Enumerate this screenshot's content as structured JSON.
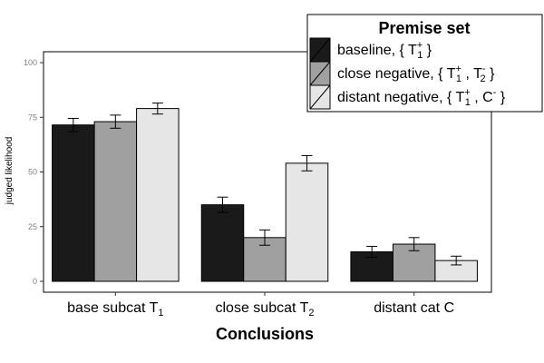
{
  "chart_data": {
    "type": "bar",
    "xlabel": "Conclusions",
    "ylabel": "judged likelihood",
    "ylim": [
      0,
      100
    ],
    "yticks": [
      0,
      25,
      50,
      75,
      100
    ],
    "grid": false,
    "legend_position": "top-right",
    "legend_title": "Premise set",
    "categories": [
      {
        "text": "base subcat",
        "symbol": "T",
        "sub": "1"
      },
      {
        "text": "close subcat",
        "symbol": "T",
        "sub": "2"
      },
      {
        "text": "distant cat",
        "symbol": "C",
        "sub": ""
      }
    ],
    "series": [
      {
        "name": "baseline,",
        "set": [
          {
            "s": "T",
            "sub": "1",
            "sup": "+"
          }
        ],
        "color": "#1a1a1a",
        "values": [
          71.5,
          35,
          13.5
        ],
        "errors": [
          3,
          3.5,
          2.5
        ]
      },
      {
        "name": "close negative,",
        "set": [
          {
            "s": "T",
            "sub": "1",
            "sup": "+"
          },
          {
            "s": "T",
            "sub": "2",
            "sup": "-"
          }
        ],
        "color": "#a0a0a0",
        "values": [
          73,
          20,
          17
        ],
        "errors": [
          3,
          3.5,
          3
        ]
      },
      {
        "name": "distant negative,",
        "set": [
          {
            "s": "T",
            "sub": "1",
            "sup": "+"
          },
          {
            "s": "C",
            "sub": "",
            "sup": "-"
          }
        ],
        "color": "#e6e6e6",
        "values": [
          79,
          54,
          9.5
        ],
        "errors": [
          2.5,
          3.5,
          2
        ]
      }
    ]
  }
}
